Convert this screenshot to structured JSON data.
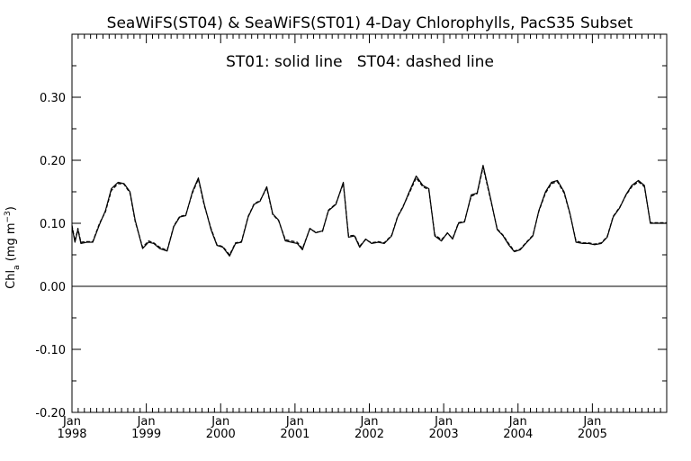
{
  "chart_data": {
    "type": "line",
    "title": "SeaWiFS(ST04) & SeaWiFS(ST01) 4-Day Chlorophylls, PacS35 Subset",
    "annotation": "ST01: solid line   ST04: dashed line",
    "ylabel": "Chl_a (mg m^-3)",
    "xlabel": "",
    "ylim": [
      -0.2,
      0.4
    ],
    "yticks": [
      -0.2,
      -0.1,
      0.0,
      0.1,
      0.2,
      0.3
    ],
    "ytick_labels": [
      "-0.20",
      "-0.10",
      "0.00",
      "0.10",
      "0.20",
      "0.30"
    ],
    "xlim": [
      1998.0,
      2006.0
    ],
    "xticks": [
      {
        "month": "Jan",
        "year": "1998",
        "value": 1998.0
      },
      {
        "month": "Jan",
        "year": "1999",
        "value": 1999.0
      },
      {
        "month": "Jan",
        "year": "2000",
        "value": 2000.0
      },
      {
        "month": "Jan",
        "year": "2001",
        "value": 2001.0
      },
      {
        "month": "Jan",
        "year": "2002",
        "value": 2002.0
      },
      {
        "month": "Jan",
        "year": "2003",
        "value": 2003.0
      },
      {
        "month": "Jan",
        "year": "2004",
        "value": 2004.0
      },
      {
        "month": "Jan",
        "year": "2005",
        "value": 2005.0
      }
    ],
    "zero_line": 0.0,
    "grid": false,
    "series": [
      {
        "name": "ST01",
        "style": "solid",
        "color": "#000000",
        "x": [
          1998.0,
          1998.04,
          1998.08,
          1998.12,
          1998.2,
          1998.28,
          1998.37,
          1998.45,
          1998.53,
          1998.62,
          1998.7,
          1998.78,
          1998.85,
          1998.95,
          1999.03,
          1999.1,
          1999.18,
          1999.28,
          1999.37,
          1999.45,
          1999.53,
          1999.62,
          1999.7,
          1999.78,
          1999.87,
          1999.95,
          2000.03,
          2000.12,
          2000.2,
          2000.28,
          2000.37,
          2000.45,
          2000.53,
          2000.62,
          2000.7,
          2000.78,
          2000.87,
          2000.95,
          2001.03,
          2001.1,
          2001.2,
          2001.28,
          2001.37,
          2001.45,
          2001.55,
          2001.65,
          2001.72,
          2001.8,
          2001.87,
          2001.95,
          2002.03,
          2002.12,
          2002.2,
          2002.3,
          2002.38,
          2002.45,
          2002.53,
          2002.63,
          2002.72,
          2002.8,
          2002.88,
          2002.97,
          2003.05,
          2003.12,
          2003.2,
          2003.28,
          2003.37,
          2003.45,
          2003.53,
          2003.63,
          2003.72,
          2003.8,
          2003.88,
          2003.95,
          2004.03,
          2004.12,
          2004.2,
          2004.28,
          2004.37,
          2004.45,
          2004.53,
          2004.62,
          2004.7,
          2004.78,
          2004.87,
          2004.95,
          2005.03,
          2005.12,
          2005.2,
          2005.28,
          2005.37,
          2005.45,
          2005.53,
          2005.62,
          2005.7,
          2005.78,
          2005.87,
          2005.95,
          2006.0
        ],
        "values": [
          0.095,
          0.07,
          0.09,
          0.068,
          0.07,
          0.07,
          0.098,
          0.12,
          0.155,
          0.165,
          0.163,
          0.15,
          0.105,
          0.06,
          0.07,
          0.068,
          0.06,
          0.056,
          0.095,
          0.11,
          0.112,
          0.15,
          0.172,
          0.13,
          0.09,
          0.065,
          0.062,
          0.048,
          0.068,
          0.07,
          0.11,
          0.13,
          0.135,
          0.158,
          0.115,
          0.105,
          0.072,
          0.07,
          0.068,
          0.058,
          0.092,
          0.085,
          0.088,
          0.12,
          0.13,
          0.165,
          0.078,
          0.08,
          0.062,
          0.075,
          0.068,
          0.07,
          0.068,
          0.08,
          0.11,
          0.125,
          0.148,
          0.175,
          0.16,
          0.155,
          0.08,
          0.072,
          0.085,
          0.075,
          0.1,
          0.102,
          0.145,
          0.148,
          0.192,
          0.14,
          0.09,
          0.08,
          0.065,
          0.055,
          0.058,
          0.07,
          0.08,
          0.12,
          0.15,
          0.165,
          0.168,
          0.15,
          0.115,
          0.07,
          0.068,
          0.068,
          0.066,
          0.068,
          0.078,
          0.11,
          0.125,
          0.145,
          0.16,
          0.168,
          0.16,
          0.1,
          0.1,
          0.1,
          0.1
        ]
      },
      {
        "name": "ST04",
        "style": "dashed",
        "color": "#000000",
        "x": [
          1998.0,
          1998.04,
          1998.08,
          1998.12,
          1998.2,
          1998.28,
          1998.37,
          1998.45,
          1998.53,
          1998.62,
          1998.7,
          1998.78,
          1998.85,
          1998.95,
          1999.03,
          1999.1,
          1999.18,
          1999.28,
          1999.37,
          1999.45,
          1999.53,
          1999.62,
          1999.7,
          1999.78,
          1999.87,
          1999.95,
          2000.03,
          2000.12,
          2000.2,
          2000.28,
          2000.37,
          2000.45,
          2000.53,
          2000.62,
          2000.7,
          2000.78,
          2000.87,
          2000.95,
          2001.03,
          2001.1,
          2001.2,
          2001.28,
          2001.37,
          2001.45,
          2001.55,
          2001.65,
          2001.72,
          2001.8,
          2001.87,
          2001.95,
          2002.03,
          2002.12,
          2002.2,
          2002.3,
          2002.38,
          2002.45,
          2002.53,
          2002.63,
          2002.72,
          2002.8,
          2002.88,
          2002.97,
          2003.05,
          2003.12,
          2003.2,
          2003.28,
          2003.37,
          2003.45,
          2003.53,
          2003.63,
          2003.72,
          2003.8,
          2003.88,
          2003.95,
          2004.03,
          2004.12,
          2004.2,
          2004.28,
          2004.37,
          2004.45,
          2004.53,
          2004.62,
          2004.7,
          2004.78,
          2004.87,
          2004.95,
          2005.03,
          2005.12,
          2005.2,
          2005.28,
          2005.37,
          2005.45,
          2005.53,
          2005.62,
          2005.7,
          2005.78,
          2005.87,
          2005.95,
          2006.0
        ],
        "values": [
          0.097,
          0.072,
          0.092,
          0.07,
          0.071,
          0.071,
          0.1,
          0.118,
          0.152,
          0.163,
          0.162,
          0.148,
          0.103,
          0.062,
          0.072,
          0.069,
          0.062,
          0.057,
          0.096,
          0.111,
          0.113,
          0.148,
          0.17,
          0.128,
          0.092,
          0.066,
          0.063,
          0.05,
          0.069,
          0.071,
          0.111,
          0.131,
          0.136,
          0.156,
          0.114,
          0.104,
          0.074,
          0.072,
          0.07,
          0.06,
          0.091,
          0.086,
          0.087,
          0.121,
          0.131,
          0.163,
          0.08,
          0.081,
          0.064,
          0.074,
          0.069,
          0.071,
          0.069,
          0.081,
          0.111,
          0.126,
          0.146,
          0.172,
          0.158,
          0.153,
          0.082,
          0.074,
          0.084,
          0.076,
          0.101,
          0.103,
          0.143,
          0.147,
          0.189,
          0.138,
          0.091,
          0.081,
          0.067,
          0.056,
          0.059,
          0.071,
          0.081,
          0.119,
          0.148,
          0.163,
          0.166,
          0.148,
          0.114,
          0.072,
          0.069,
          0.069,
          0.067,
          0.069,
          0.079,
          0.111,
          0.126,
          0.144,
          0.158,
          0.166,
          0.158,
          0.101,
          0.101,
          0.101,
          0.101
        ]
      }
    ]
  }
}
